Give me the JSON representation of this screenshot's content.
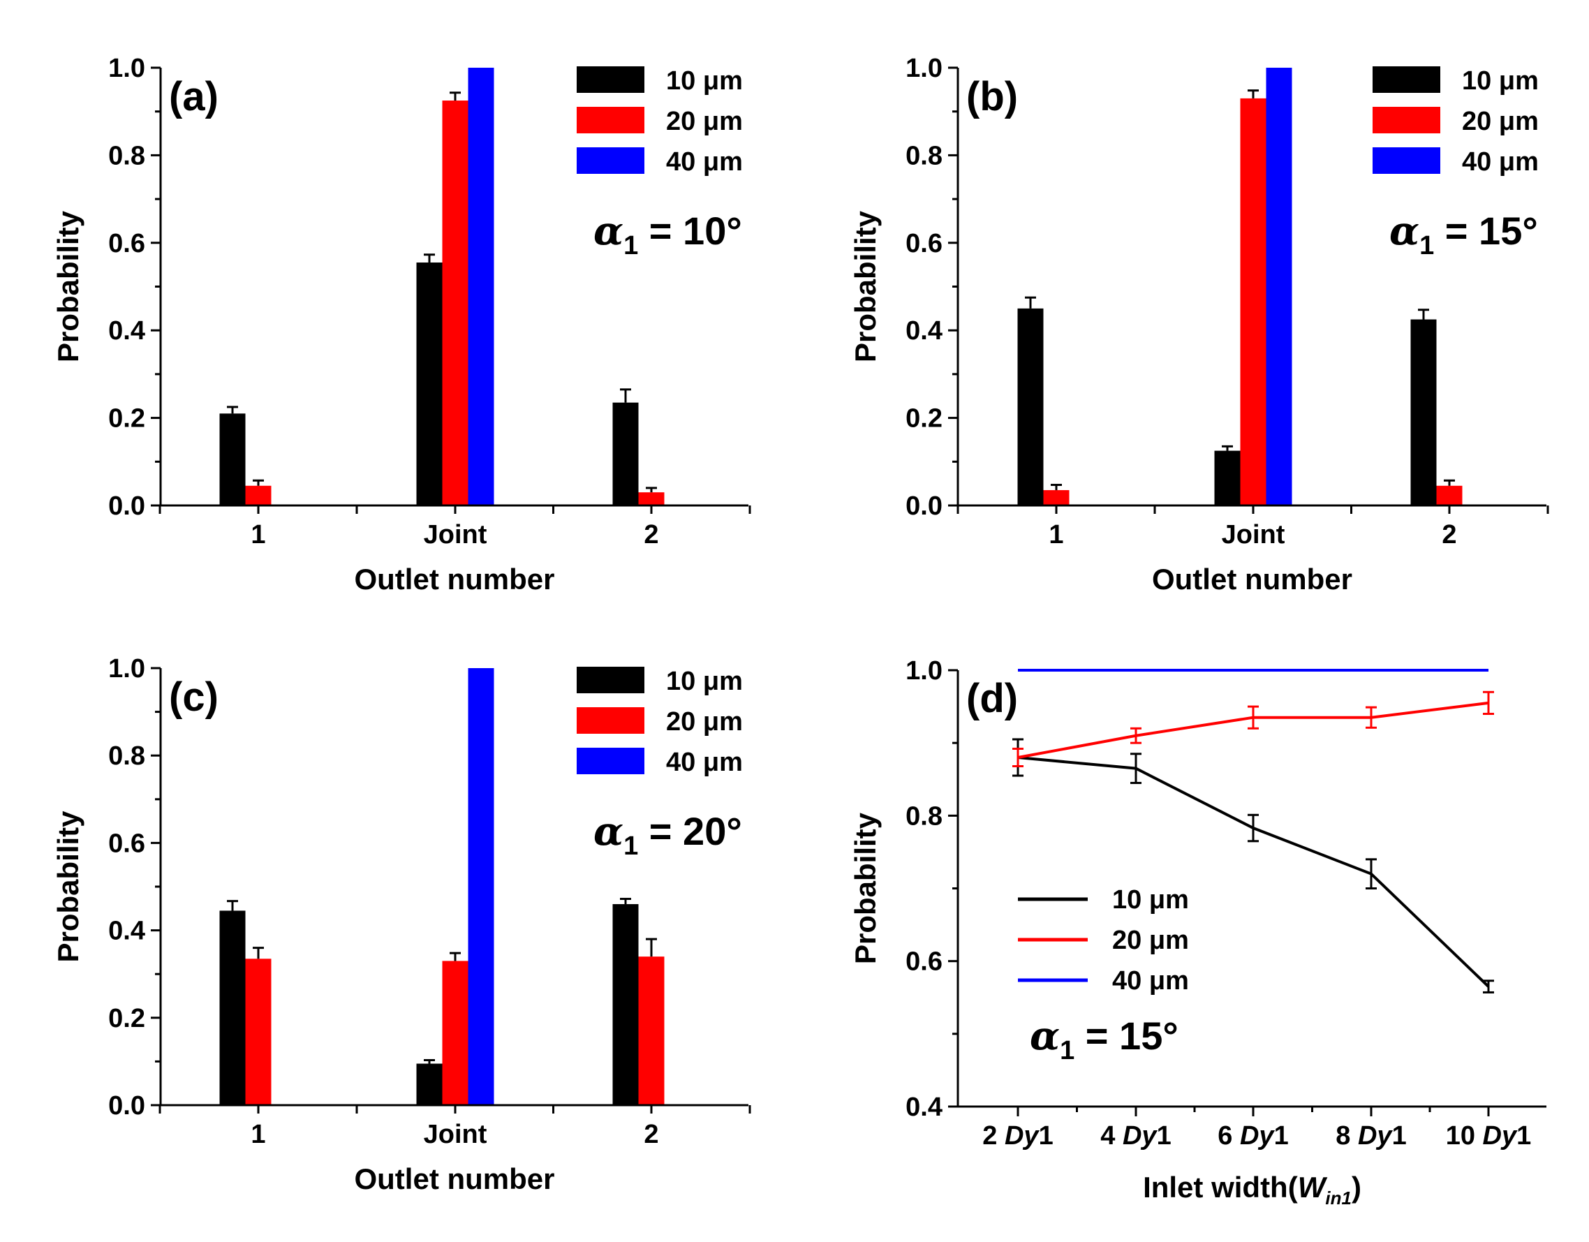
{
  "chart_data": [
    {
      "panel": "(a)",
      "type": "bar",
      "categories": [
        "1",
        "Joint",
        "2"
      ],
      "series": [
        {
          "name": "10 μm",
          "color": "#000000",
          "values": [
            0.21,
            0.555,
            0.235
          ],
          "errors": [
            0.015,
            0.018,
            0.03
          ]
        },
        {
          "name": "20 μm",
          "color": "#ff0000",
          "values": [
            0.045,
            0.925,
            0.03
          ],
          "errors": [
            0.012,
            0.018,
            0.01
          ]
        },
        {
          "name": "40 μm",
          "color": "#0000ff",
          "values": [
            0,
            1.0,
            0
          ],
          "errors": [
            0,
            0,
            0
          ]
        }
      ],
      "xlabel": "Outlet number",
      "ylabel": "Probability",
      "ylim": [
        0,
        1.0
      ],
      "yticks": [
        "0.0",
        "0.2",
        "0.4",
        "0.6",
        "0.8",
        "1.0"
      ],
      "annotation": {
        "symbol": "α",
        "sub": "1",
        "text": " = 10°"
      }
    },
    {
      "panel": "(b)",
      "type": "bar",
      "categories": [
        "1",
        "Joint",
        "2"
      ],
      "series": [
        {
          "name": "10 μm",
          "color": "#000000",
          "values": [
            0.45,
            0.125,
            0.425
          ],
          "errors": [
            0.025,
            0.01,
            0.022
          ]
        },
        {
          "name": "20 μm",
          "color": "#ff0000",
          "values": [
            0.035,
            0.93,
            0.045
          ],
          "errors": [
            0.012,
            0.018,
            0.012
          ]
        },
        {
          "name": "40 μm",
          "color": "#0000ff",
          "values": [
            0,
            1.0,
            0
          ],
          "errors": [
            0,
            0,
            0
          ]
        }
      ],
      "xlabel": "Outlet number",
      "ylabel": "Probability",
      "ylim": [
        0,
        1.0
      ],
      "yticks": [
        "0.0",
        "0.2",
        "0.4",
        "0.6",
        "0.8",
        "1.0"
      ],
      "annotation": {
        "symbol": "α",
        "sub": "1",
        "text": " = 15°"
      }
    },
    {
      "panel": "(c)",
      "type": "bar",
      "categories": [
        "1",
        "Joint",
        "2"
      ],
      "series": [
        {
          "name": "10 μm",
          "color": "#000000",
          "values": [
            0.445,
            0.095,
            0.46
          ],
          "errors": [
            0.022,
            0.008,
            0.012
          ]
        },
        {
          "name": "20 μm",
          "color": "#ff0000",
          "values": [
            0.335,
            0.33,
            0.34
          ],
          "errors": [
            0.025,
            0.018,
            0.04
          ]
        },
        {
          "name": "40 μm",
          "color": "#0000ff",
          "values": [
            0,
            1.0,
            0
          ],
          "errors": [
            0,
            0,
            0
          ]
        }
      ],
      "xlabel": "Outlet number",
      "ylabel": "Probability",
      "ylim": [
        0,
        1.0
      ],
      "yticks": [
        "0.0",
        "0.2",
        "0.4",
        "0.6",
        "0.8",
        "1.0"
      ],
      "annotation": {
        "symbol": "α",
        "sub": "1",
        "text": " = 20°"
      }
    },
    {
      "panel": "(d)",
      "type": "line",
      "categories": [
        {
          "num": "2 ",
          "ital": "Dy",
          "tail": "1"
        },
        {
          "num": "4 ",
          "ital": "Dy",
          "tail": "1"
        },
        {
          "num": "6 ",
          "ital": "Dy",
          "tail": "1"
        },
        {
          "num": "8 ",
          "ital": "Dy",
          "tail": "1"
        },
        {
          "num": "10 ",
          "ital": "Dy",
          "tail": "1"
        }
      ],
      "series": [
        {
          "name": "10 μm",
          "color": "#000000",
          "values": [
            0.88,
            0.865,
            0.783,
            0.72,
            0.565
          ],
          "errors": [
            0.025,
            0.02,
            0.018,
            0.02,
            0.008
          ]
        },
        {
          "name": "20 μm",
          "color": "#ff0000",
          "values": [
            0.88,
            0.91,
            0.935,
            0.935,
            0.955
          ],
          "errors": [
            0.012,
            0.01,
            0.015,
            0.014,
            0.015
          ]
        },
        {
          "name": "40 μm",
          "color": "#0000ff",
          "values": [
            1.0,
            1.0,
            1.0,
            1.0,
            1.0
          ],
          "errors": [
            0,
            0,
            0,
            0,
            0
          ]
        }
      ],
      "xlabel": {
        "prefix": "Inlet width(",
        "ital": "W",
        "sub": "in1",
        "suffix": ")"
      },
      "ylabel": "Probability",
      "ylim": [
        0.4,
        1.0
      ],
      "yticks": [
        "0.4",
        "0.6",
        "0.8",
        "1.0"
      ],
      "annotation": {
        "symbol": "α",
        "sub": "1",
        "text": " = 15°"
      }
    }
  ]
}
